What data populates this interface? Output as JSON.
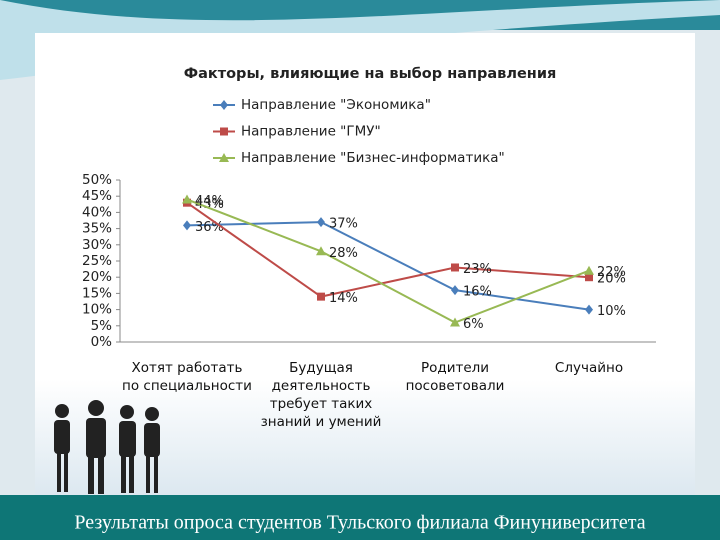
{
  "chart_data": {
    "type": "line",
    "title": "Факторы, влияющие на выбор направления",
    "categories": [
      "Хотят работать по специальности",
      "Будущая деятельность требует таких знаний и умений",
      "Родители посоветовали",
      "Случайно"
    ],
    "series": [
      {
        "name": "Направление \"Экономика\"",
        "color": "#4a7ebb",
        "marker": "diamond",
        "values": [
          36,
          37,
          16,
          10
        ],
        "value_labels": [
          "36%",
          "37%",
          "16%",
          "10%"
        ]
      },
      {
        "name": "Направление \"ГМУ\"",
        "color": "#be4b48",
        "marker": "square",
        "values": [
          43,
          14,
          23,
          20
        ],
        "value_labels": [
          "43%",
          "14%",
          "23%",
          "20%"
        ]
      },
      {
        "name": "Направление \"Бизнес-информатика\"",
        "color": "#98b954",
        "marker": "triangle",
        "values": [
          44,
          28,
          6,
          22
        ],
        "value_labels": [
          "44%",
          "28%",
          "6%",
          "22%"
        ]
      }
    ],
    "ylim": [
      0,
      50
    ],
    "yticks": [
      {
        "value": 0,
        "label": "0%"
      },
      {
        "value": 5,
        "label": "5%"
      },
      {
        "value": 10,
        "label": "10%"
      },
      {
        "value": 15,
        "label": "15%"
      },
      {
        "value": 20,
        "label": "20%"
      },
      {
        "value": 25,
        "label": "25%"
      },
      {
        "value": 30,
        "label": "30%"
      },
      {
        "value": 35,
        "label": "35%"
      },
      {
        "value": 40,
        "label": "40%"
      },
      {
        "value": 45,
        "label": "45%"
      },
      {
        "value": 50,
        "label": "50%"
      }
    ],
    "grid": false,
    "legend": "top"
  },
  "footer": "Результаты опроса студентов Тульского филиала Финуниверситета"
}
